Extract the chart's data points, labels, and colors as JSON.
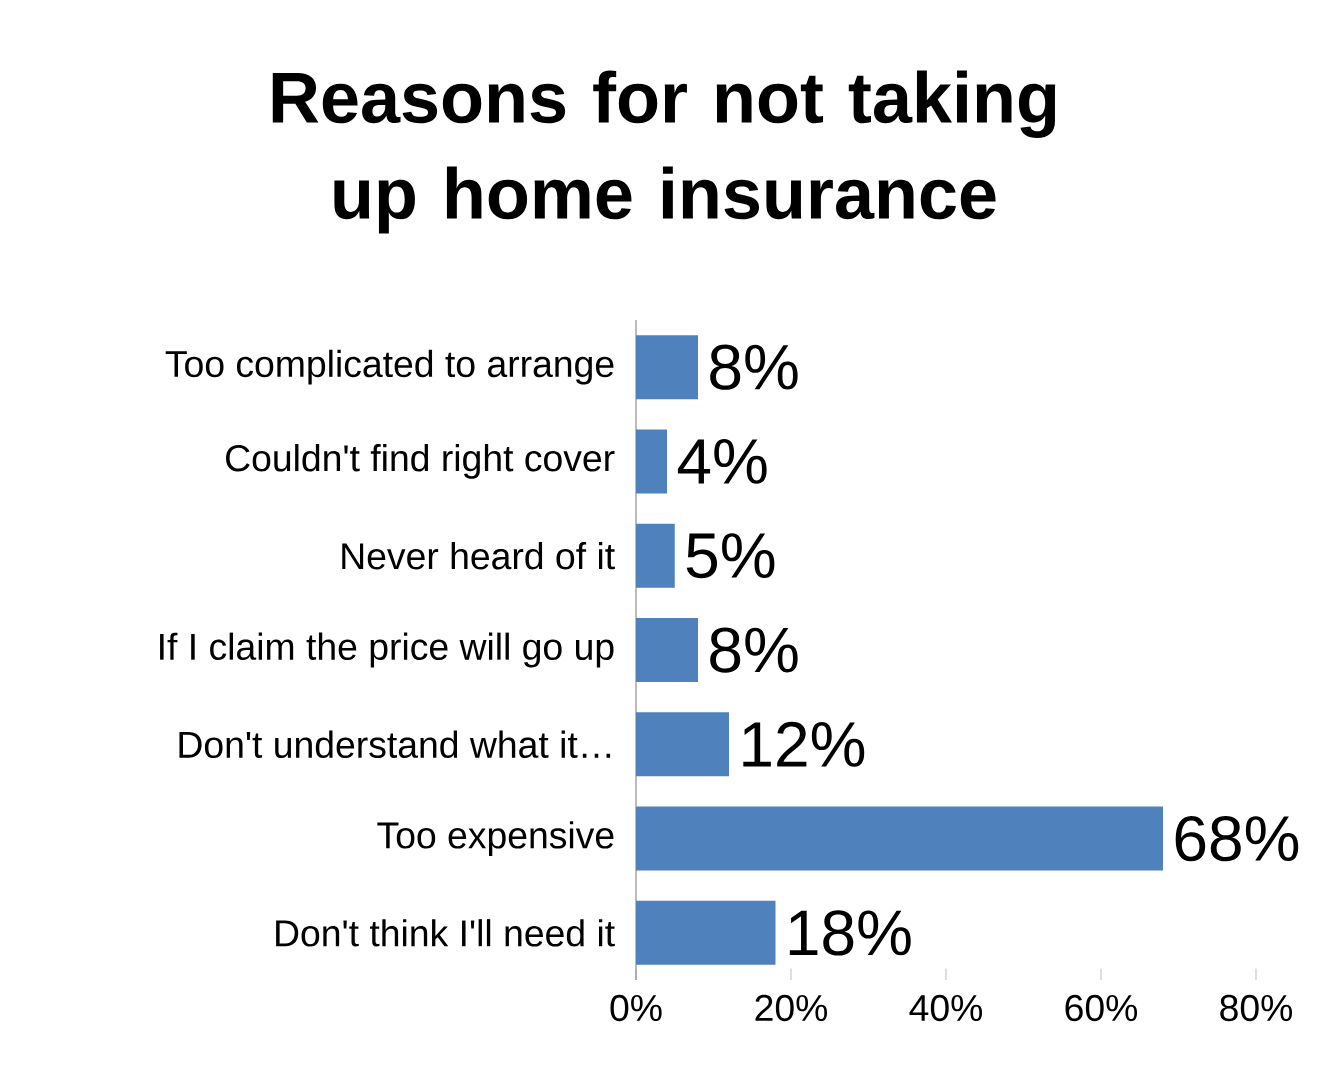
{
  "chart_data": {
    "type": "bar",
    "orientation": "horizontal",
    "title": "Reasons for not taking up home insurance",
    "categories": [
      "Too complicated to arrange",
      "Couldn't find right cover",
      "Never heard of it",
      "If I claim the price will go up",
      "Don't understand what it…",
      "Too expensive",
      "Don't think I'll need it"
    ],
    "values": [
      8,
      4,
      5,
      8,
      12,
      68,
      18
    ],
    "value_labels": [
      "8%",
      "4%",
      "5%",
      "8%",
      "12%",
      "68%",
      "18%"
    ],
    "color": "#4f81bd",
    "xlim": [
      0,
      80
    ],
    "xticks": [
      {
        "value": 0,
        "label": "0%"
      },
      {
        "value": 20,
        "label": "20%"
      },
      {
        "value": 40,
        "label": "40%"
      },
      {
        "value": 60,
        "label": "60%"
      },
      {
        "value": 80,
        "label": "80%"
      }
    ],
    "grid": false
  }
}
